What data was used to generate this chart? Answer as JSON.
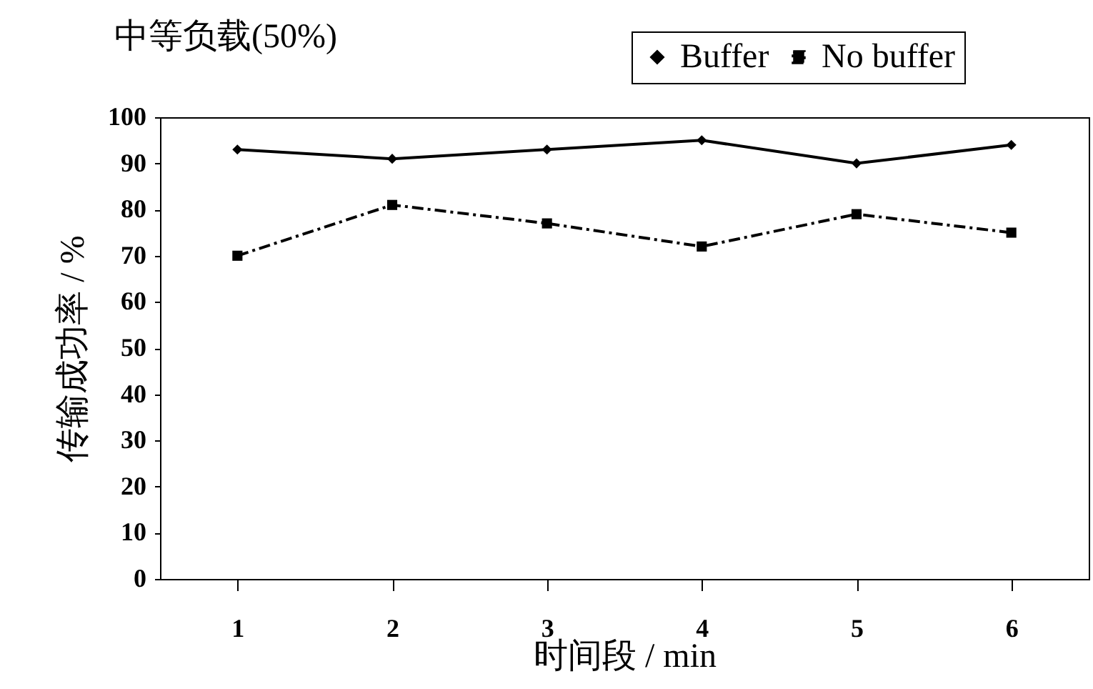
{
  "chart_data": {
    "type": "line",
    "title": "中等负载(50%)",
    "xlabel": "时间段 / min",
    "ylabel": "传输成功率 / %",
    "categories": [
      "1",
      "2",
      "3",
      "4",
      "5",
      "6"
    ],
    "series": [
      {
        "name": "Buffer",
        "color": "#000000",
        "marker": "diamond",
        "line_style": "solid",
        "values": [
          93,
          91,
          93,
          95,
          90,
          94
        ]
      },
      {
        "name": "No buffer",
        "color": "#000000",
        "marker": "square",
        "line_style": "dashed",
        "values": [
          70,
          81,
          77,
          72,
          79,
          75
        ]
      }
    ],
    "ylim": [
      0,
      100
    ],
    "yticks": [
      0,
      10,
      20,
      30,
      40,
      50,
      60,
      70,
      80,
      90,
      100
    ],
    "grid": false,
    "legend": "top right"
  }
}
